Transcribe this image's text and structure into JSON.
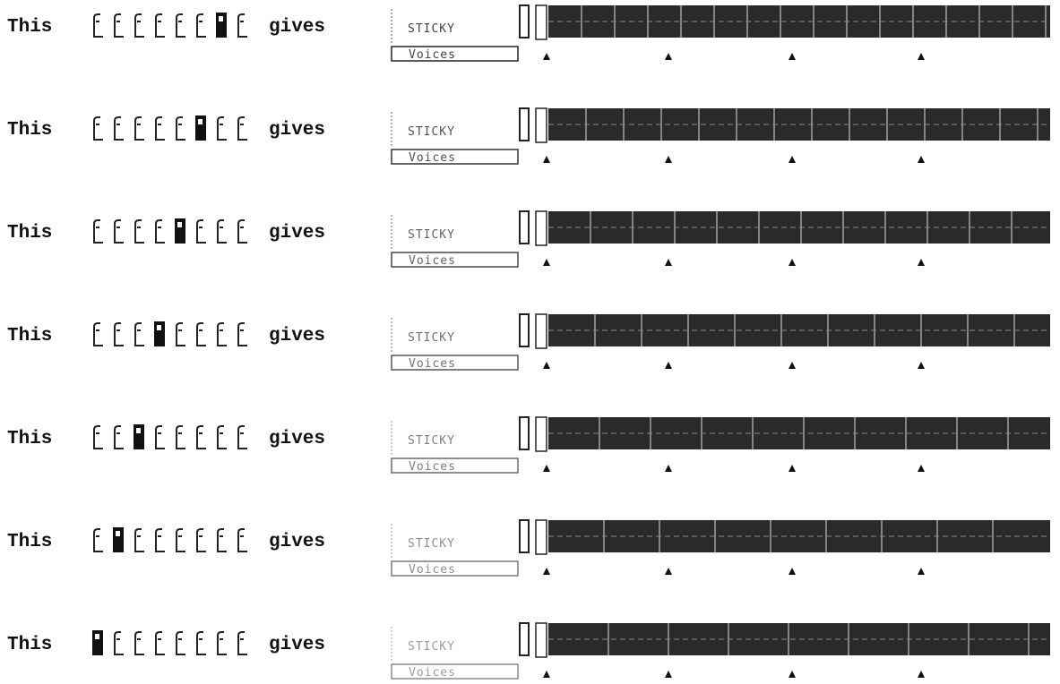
{
  "rows": [
    {
      "lead": "This",
      "tail": "gives",
      "label": "STICKY",
      "button": "Voices",
      "highlighted": 6
    },
    {
      "lead": "This",
      "tail": "gives",
      "label": "STICKY",
      "button": "Voices",
      "highlighted": 5
    },
    {
      "lead": "This",
      "tail": "gives",
      "label": "STICKY",
      "button": "Voices",
      "highlighted": 4
    },
    {
      "lead": "This",
      "tail": "gives",
      "label": "STICKY",
      "button": "Voices",
      "highlighted": 3
    },
    {
      "lead": "This",
      "tail": "gives",
      "label": "STICKY",
      "button": "Voices",
      "highlighted": 2
    },
    {
      "lead": "This",
      "tail": "gives",
      "label": "STICKY",
      "button": "Voices",
      "highlighted": 1
    },
    {
      "lead": "This",
      "tail": "gives",
      "label": "STICKY",
      "button": "Voices",
      "highlighted": 0
    }
  ]
}
